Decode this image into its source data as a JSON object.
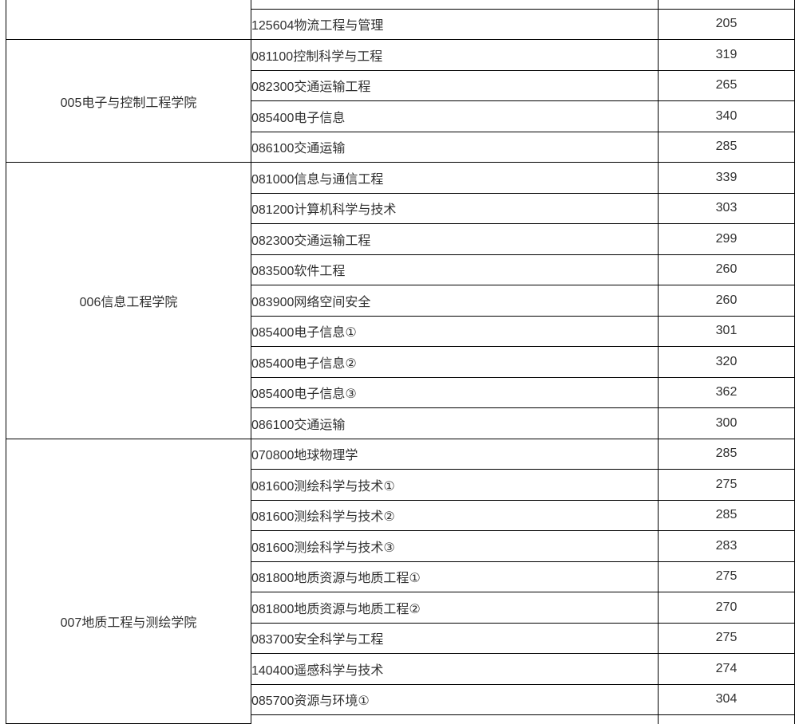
{
  "page": {
    "background": "#ffffff"
  },
  "table": {
    "border_color": "#000000",
    "text_color": "#303030",
    "columns": {
      "college_width": 307,
      "major_width": 510,
      "score_width": 171
    },
    "sections": [
      {
        "college": "",
        "rows": [
          {
            "major": "",
            "score": ""
          },
          {
            "major": "125604物流工程与管理",
            "score": "205"
          }
        ]
      },
      {
        "college": "005电子与控制工程学院",
        "rows": [
          {
            "major": "081100控制科学与工程",
            "score": "319"
          },
          {
            "major": "082300交通运输工程",
            "score": "265"
          },
          {
            "major": "085400电子信息",
            "score": "340"
          },
          {
            "major": "086100交通运输",
            "score": "285"
          }
        ]
      },
      {
        "college": "006信息工程学院",
        "rows": [
          {
            "major": "081000信息与通信工程",
            "score": "339"
          },
          {
            "major": "081200计算机科学与技术",
            "score": "303"
          },
          {
            "major": "082300交通运输工程",
            "score": "299"
          },
          {
            "major": "083500软件工程",
            "score": "260"
          },
          {
            "major": "083900网络空间安全",
            "score": "260"
          },
          {
            "major": "085400电子信息①",
            "score": "301"
          },
          {
            "major": "085400电子信息②",
            "score": "320"
          },
          {
            "major": "085400电子信息③",
            "score": "362"
          },
          {
            "major": "086100交通运输",
            "score": "300"
          }
        ]
      },
      {
        "college": "007地质工程与测绘学院",
        "rows": [
          {
            "major": "070800地球物理学",
            "score": "285"
          },
          {
            "major": "081600测绘科学与技术①",
            "score": "275"
          },
          {
            "major": "081600测绘科学与技术②",
            "score": "285"
          },
          {
            "major": "081600测绘科学与技术③",
            "score": "283"
          },
          {
            "major": "081800地质资源与地质工程①",
            "score": "275"
          },
          {
            "major": "081800地质资源与地质工程②",
            "score": "270"
          },
          {
            "major": "083700安全科学与工程",
            "score": "275"
          },
          {
            "major": "140400遥感科学与技术",
            "score": "274"
          },
          {
            "major": "085700资源与环境①",
            "score": "304"
          },
          {
            "major": "",
            "score": ""
          }
        ]
      }
    ]
  }
}
